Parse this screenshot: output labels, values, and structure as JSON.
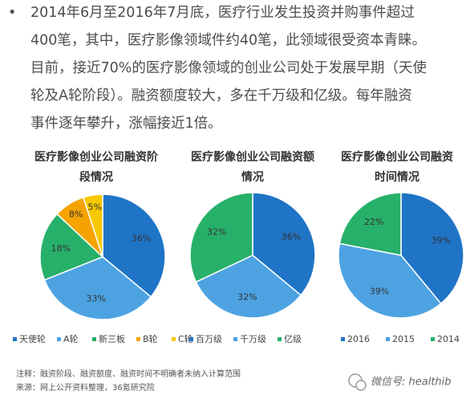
{
  "bullet": "•",
  "paragraph": [
    "2014年6月至2016年7月底，医疗行业发生投资并购事件超过",
    "400笔，其中，医疗影像领域件约40笔，此领域很受资本青睐。",
    "目前，接近70%的医疗影像领域的创业公司处于发展早期（天使",
    "轮及A轮阶段）。融资额度较大，多在千万级和亿级。每年融资",
    "事件逐年攀升，涨幅接近1倍。"
  ],
  "chart_data": [
    {
      "type": "pie",
      "title": [
        "医疗影像创业公司融资阶",
        "段情况"
      ],
      "categories": [
        "天使轮",
        "A轮",
        "新三板",
        "B轮",
        "C轮"
      ],
      "values": [
        36,
        33,
        18,
        8,
        5
      ],
      "value_labels": [
        "36%",
        "33%",
        "18%",
        "8%",
        "5%"
      ],
      "colors": [
        "#1f74c6",
        "#4da3e2",
        "#27b06a",
        "#f5a300",
        "#f6c800"
      ]
    },
    {
      "type": "pie",
      "title": [
        "医疗影像创业公司融资额",
        "情况"
      ],
      "categories": [
        "百万级",
        "千万级",
        "亿级"
      ],
      "values": [
        36,
        32,
        32
      ],
      "value_labels": [
        "36%",
        "32%",
        "32%"
      ],
      "colors": [
        "#1f74c6",
        "#4da3e2",
        "#27b06a"
      ]
    },
    {
      "type": "pie",
      "title": [
        "医疗影像创业公司融资",
        "时间情况"
      ],
      "categories": [
        "2016",
        "2015",
        "2014"
      ],
      "values": [
        39,
        39,
        22
      ],
      "value_labels": [
        "39%",
        "39%",
        "22%"
      ],
      "colors": [
        "#1f74c6",
        "#4da3e2",
        "#27b06a"
      ]
    }
  ],
  "notes": [
    "注释：融资阶段、融资额度、融资时间不明确者未纳入计算范围",
    "来源：网上公开资料整理，36氪研究院"
  ],
  "watermark": "微信号: healthib"
}
